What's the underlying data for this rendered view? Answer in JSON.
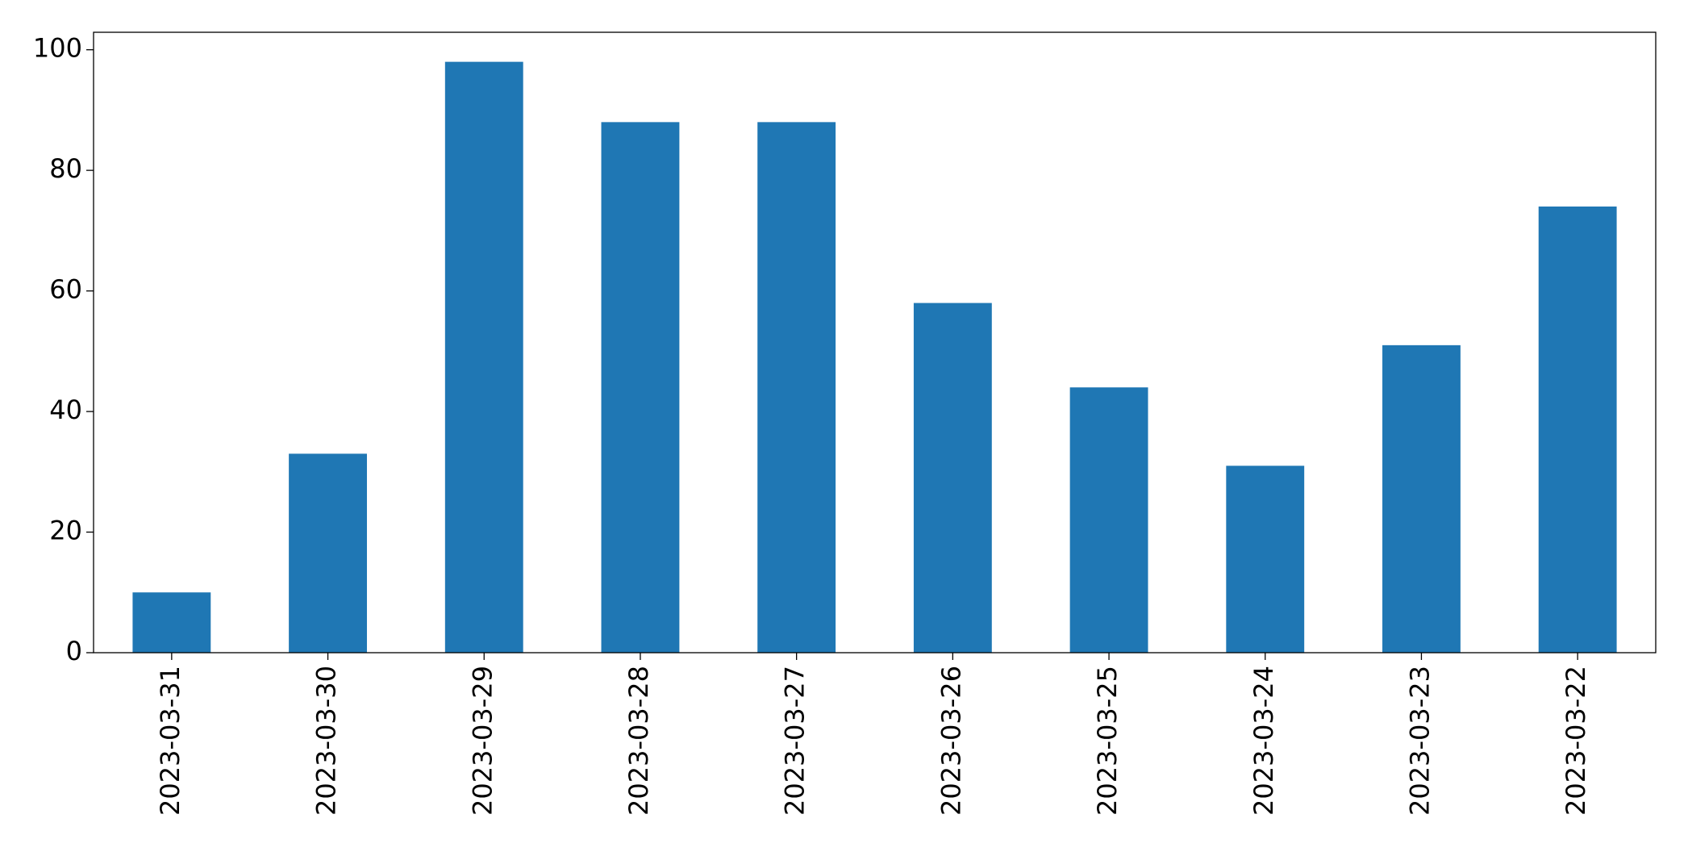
{
  "chart_data": {
    "type": "bar",
    "categories": [
      "2023-03-31",
      "2023-03-30",
      "2023-03-29",
      "2023-03-28",
      "2023-03-27",
      "2023-03-26",
      "2023-03-25",
      "2023-03-24",
      "2023-03-23",
      "2023-03-22"
    ],
    "values": [
      10,
      33,
      98,
      88,
      88,
      58,
      44,
      31,
      51,
      74
    ],
    "color": "#1f77b4",
    "ylim": [
      0,
      102.9
    ],
    "yticks": [
      0,
      20,
      40,
      60,
      80,
      100
    ],
    "grid": false
  }
}
